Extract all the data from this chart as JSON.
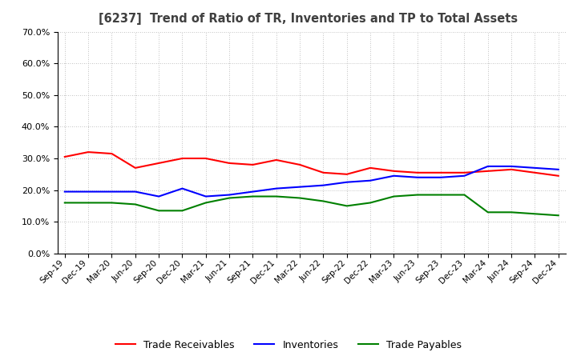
{
  "title": "[6237]  Trend of Ratio of TR, Inventories and TP to Total Assets",
  "x_labels": [
    "Sep-19",
    "Dec-19",
    "Mar-20",
    "Jun-20",
    "Sep-20",
    "Dec-20",
    "Mar-21",
    "Jun-21",
    "Sep-21",
    "Dec-21",
    "Mar-22",
    "Jun-22",
    "Sep-22",
    "Dec-22",
    "Mar-23",
    "Jun-23",
    "Sep-23",
    "Dec-23",
    "Mar-24",
    "Jun-24",
    "Sep-24",
    "Dec-24"
  ],
  "trade_receivables": [
    30.5,
    32.0,
    31.5,
    27.0,
    28.5,
    30.0,
    30.0,
    28.5,
    28.0,
    29.5,
    28.0,
    25.5,
    25.0,
    27.0,
    26.0,
    25.5,
    25.5,
    25.5,
    26.0,
    26.5,
    25.5,
    24.5
  ],
  "inventories": [
    19.5,
    19.5,
    19.5,
    19.5,
    18.0,
    20.5,
    18.0,
    18.5,
    19.5,
    20.5,
    21.0,
    21.5,
    22.5,
    23.0,
    24.5,
    24.0,
    24.0,
    24.5,
    27.5,
    27.5,
    27.0,
    26.5
  ],
  "trade_payables": [
    16.0,
    16.0,
    16.0,
    15.5,
    13.5,
    13.5,
    16.0,
    17.5,
    18.0,
    18.0,
    17.5,
    16.5,
    15.0,
    16.0,
    18.0,
    18.5,
    18.5,
    18.5,
    13.0,
    13.0,
    12.5,
    12.0
  ],
  "tr_color": "#ff0000",
  "inv_color": "#0000ff",
  "tp_color": "#008000",
  "ylim": [
    0,
    70
  ],
  "yticks": [
    0,
    10,
    20,
    30,
    40,
    50,
    60,
    70
  ],
  "legend_tr": "Trade Receivables",
  "legend_inv": "Inventories",
  "legend_tp": "Trade Payables",
  "background_color": "#ffffff",
  "grid_color": "#b0b0b0",
  "title_color": "#404040"
}
